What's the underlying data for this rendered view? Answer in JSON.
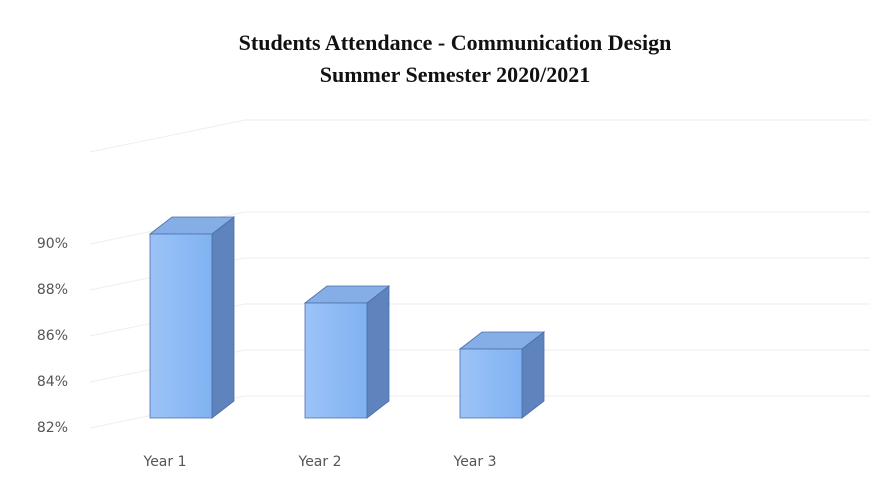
{
  "chart_data": {
    "type": "bar3d",
    "title": [
      "Students Attendance - Communication Design",
      "Summer Semester 2020/2021"
    ],
    "categories": [
      "Year 1",
      "Year 2",
      "Year 3"
    ],
    "values": [
      90,
      87,
      85
    ],
    "color": "#80b2f2",
    "ylim": [
      82,
      94
    ],
    "yticks": [
      {
        "value": 82,
        "label": "82%"
      },
      {
        "value": 84,
        "label": "84%"
      },
      {
        "value": 86,
        "label": "86%"
      },
      {
        "value": 88,
        "label": "88%"
      },
      {
        "value": 90,
        "label": "90%"
      }
    ],
    "grid": true
  }
}
